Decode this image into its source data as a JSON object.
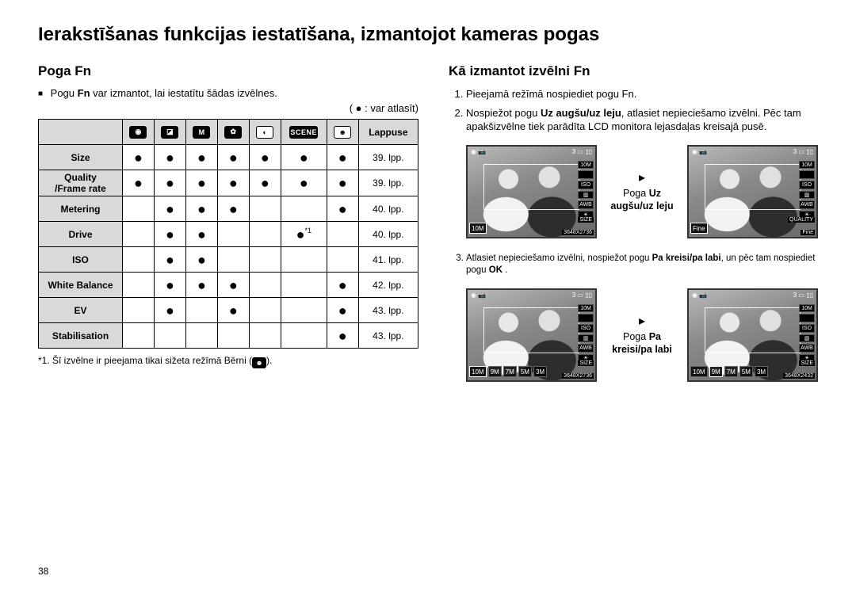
{
  "page_title": "Ierakstīšanas funkcijas iestatīšana, izmantojot kameras pogas",
  "page_number": "38",
  "left": {
    "heading": "Poga Fn",
    "intro_html": "Pogu Fn var izmantot, lai iestatītu šādas izvēlnes.",
    "legend": "( ● : var atlasīt)",
    "footnote": "*1. Šī izvēlne ir pieejama tikai sižeta režīmā Bērni (",
    "footnote_end": ")."
  },
  "table": {
    "mode_icons": [
      "camera",
      "profile",
      "M",
      "video",
      "dark",
      "SCENE",
      "face"
    ],
    "page_header": "Lappuse",
    "rows": [
      {
        "label": "Size",
        "cells": [
          "●",
          "●",
          "●",
          "●",
          "●",
          "●",
          "●"
        ],
        "page": "39. lpp."
      },
      {
        "label": "Quality\n/Frame rate",
        "cells": [
          "●",
          "●",
          "●",
          "●",
          "●",
          "●",
          "●"
        ],
        "page": "39. lpp."
      },
      {
        "label": "Metering",
        "cells": [
          "",
          "●",
          "●",
          "●",
          "",
          "",
          "●"
        ],
        "page": "40. lpp."
      },
      {
        "label": "Drive",
        "cells": [
          "",
          "●",
          "●",
          "",
          "",
          "●*1",
          ""
        ],
        "page": "40. lpp."
      },
      {
        "label": "ISO",
        "cells": [
          "",
          "●",
          "●",
          "",
          "",
          "",
          ""
        ],
        "page": "41. lpp."
      },
      {
        "label": "White Balance",
        "cells": [
          "",
          "●",
          "●",
          "●",
          "",
          "",
          "●"
        ],
        "page": "42. lpp."
      },
      {
        "label": "EV",
        "cells": [
          "",
          "●",
          "",
          "●",
          "",
          "",
          "●"
        ],
        "page": "43. lpp."
      },
      {
        "label": "Stabilisation",
        "cells": [
          "",
          "",
          "",
          "",
          "",
          "",
          "●"
        ],
        "page": "43. lpp."
      }
    ]
  },
  "right": {
    "heading": "Kā izmantot izvēlni Fn",
    "step1": "Pieejamā režīmā nospiediet pogu Fn.",
    "step2": "Nospiežot pogu Uz augšu/uz leju, atlasiet nepieciešamo izvēlni. Pēc tam apakšizvēlne tiek parādīta LCD monitora lejasdaļas kreisajā pusē.",
    "step3": "Atlasiet nepieciešamo izvēlni, nospiežot pogu Pa kreisi/pa labi, un pēc tam nospiediet pogu OK .",
    "arrow1_pre": "Poga ",
    "arrow1_bold": "Uz augšu/uz leju",
    "arrow2_pre": "Poga ",
    "arrow2_bold": "Pa kreisi/pa labi"
  },
  "lcd": {
    "top_left": "◉  📷",
    "top_right": "3  ▭ ▯▯",
    "right_chips_a": [
      "10M",
      "",
      "ISO",
      "▥",
      "AWB",
      "☀"
    ],
    "right_chips_b": [
      "10M",
      "",
      "ISO",
      "▥",
      "AWB",
      "☀"
    ],
    "size_tag": "SIZE",
    "quality_tag": "QUALITY",
    "fine_tag": "Fine",
    "res1": "3648X2736",
    "res2": "3648X2432",
    "size_options": [
      "10M",
      "9M",
      "7M",
      "5M",
      "3M"
    ]
  }
}
